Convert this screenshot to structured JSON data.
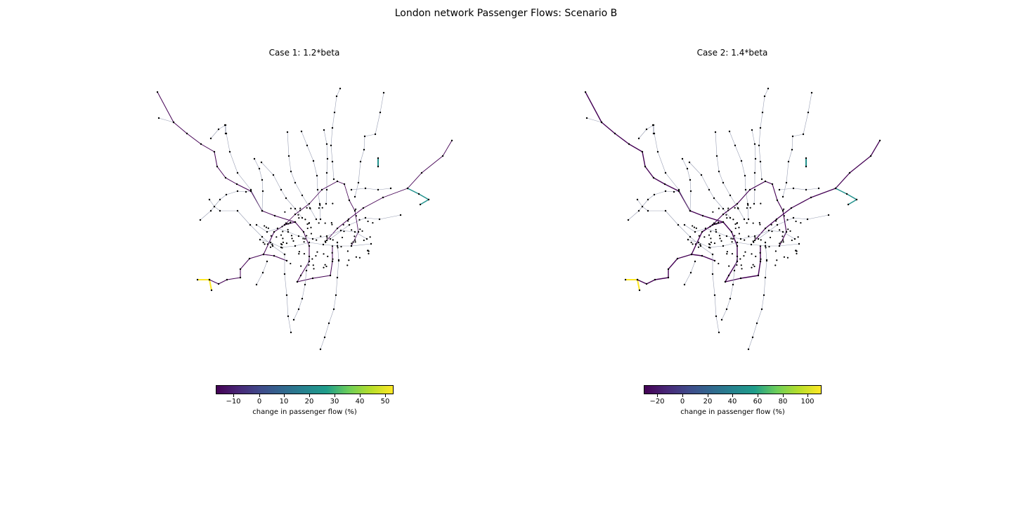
{
  "figure": {
    "title": "London network Passenger Flows: Scenario B"
  },
  "panels": [
    {
      "title": "Case 1: 1.2*beta",
      "colorbar": {
        "label": "change in passenger flow (%)",
        "ticks": [
          "−10",
          "0",
          "10",
          "20",
          "30",
          "40",
          "50"
        ]
      }
    },
    {
      "title": "Case 2: 1.4*beta",
      "colorbar": {
        "label": "change in passenger flow (%)",
        "ticks": [
          "−20",
          "0",
          "20",
          "40",
          "60",
          "80",
          "100"
        ]
      }
    }
  ],
  "colors": {
    "low": "#440154",
    "mid": "#21918c",
    "high": "#fde725",
    "node": "#000000",
    "edge_light": "#9aa0b5"
  }
}
